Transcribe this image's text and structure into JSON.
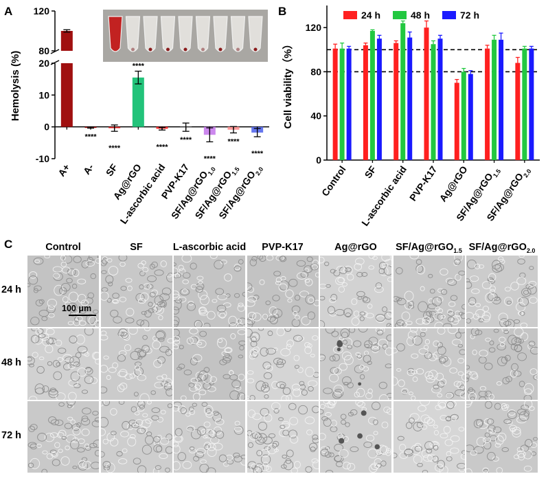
{
  "panels": {
    "a": "A",
    "b": "B",
    "c": "C"
  },
  "chart_data": [
    {
      "type": "bar",
      "panel": "A",
      "ylabel": "Hemolysis (%)",
      "broken_axis": true,
      "ylim_lower": [
        -10,
        20
      ],
      "ylim_upper": [
        80,
        120
      ],
      "yticks": [
        "120",
        "80",
        "20",
        "10",
        "0",
        "-10"
      ],
      "categories": [
        "A+",
        "A-",
        "SF",
        "Ag@rGO",
        "L-ascorbic acid",
        "PVP-K17",
        "SF/Ag@rGO1.0",
        "SF/Ag@rGO1.5",
        "SF/Ag@rGO2.0"
      ],
      "category_subscripts": [
        "",
        "",
        "",
        "",
        "",
        "",
        "1.0",
        "1.5",
        "2.0"
      ],
      "values": [
        100,
        -0.2,
        -0.4,
        15.5,
        -0.6,
        -0.1,
        -2.5,
        -0.9,
        -1.8
      ],
      "errors": [
        1.2,
        0.2,
        1.0,
        2.0,
        0.4,
        1.3,
        2.2,
        1.0,
        1.3
      ],
      "colors": [
        "#a01010",
        "#a01010",
        "#dd2222",
        "#22c37a",
        "#ff3333",
        "#aaaaaa",
        "#cc88ee",
        "#ff9a9a",
        "#6677ee"
      ],
      "significance": [
        "",
        "****",
        "****",
        "****",
        "****",
        "****",
        "****",
        "****",
        "****"
      ]
    },
    {
      "type": "bar",
      "panel": "B",
      "ylabel": "Cell viability（%）",
      "ylim": [
        0,
        140
      ],
      "yticks": [
        "0",
        "40",
        "80",
        "120"
      ],
      "categories": [
        "Control",
        "SF",
        "L-ascorbic acid",
        "PVP-K17",
        "Ag@rGO",
        "SF/Ag@rGO1.5",
        "SF/Ag@rGO2.0"
      ],
      "category_subscripts": [
        "",
        "",
        "",
        "",
        "",
        "1.5",
        "2.0"
      ],
      "reference_lines": [
        100,
        80
      ],
      "series": [
        {
          "name": "24 h",
          "color": "#ff2020",
          "values": [
            101,
            104,
            106,
            120,
            70,
            101,
            88
          ],
          "errors": [
            4,
            2,
            2,
            6,
            3,
            3,
            5
          ]
        },
        {
          "name": "48 h",
          "color": "#22c840",
          "values": [
            101,
            117,
            124,
            105,
            80,
            109,
            101
          ],
          "errors": [
            5,
            1,
            2,
            3,
            3,
            4,
            2
          ]
        },
        {
          "name": "72 h",
          "color": "#1a1aff",
          "values": [
            101,
            110,
            111,
            110,
            78,
            109,
            101
          ],
          "errors": [
            2,
            3,
            5,
            3,
            3,
            6,
            2
          ]
        }
      ],
      "legend_position": "top"
    }
  ],
  "micrographs": {
    "columns": [
      "Control",
      "SF",
      "L-ascorbic acid",
      "PVP-K17",
      "Ag@rGO",
      "SF/Ag@rGO1.5",
      "SF/Ag@rGO2.0"
    ],
    "column_subscripts": [
      "",
      "",
      "",
      "",
      "",
      "1.5",
      "2.0"
    ],
    "rows": [
      "24 h",
      "48 h",
      "72 h"
    ],
    "scale_bar": "100 μm"
  }
}
